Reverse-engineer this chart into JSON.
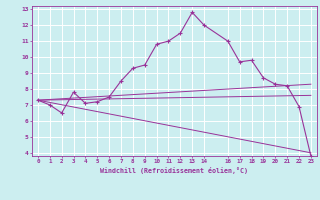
{
  "xlabel": "Windchill (Refroidissement éolien,°C)",
  "xlim": [
    -0.5,
    23.5
  ],
  "ylim": [
    3.8,
    13.2
  ],
  "xtick_positions": [
    0,
    1,
    2,
    3,
    4,
    5,
    6,
    7,
    8,
    9,
    10,
    11,
    12,
    13,
    14,
    16,
    17,
    18,
    19,
    20,
    21,
    22,
    23
  ],
  "xtick_labels": [
    "0",
    "1",
    "2",
    "3",
    "4",
    "5",
    "6",
    "7",
    "8",
    "9",
    "10",
    "11",
    "12",
    "13",
    "14",
    "16",
    "17",
    "18",
    "19",
    "20",
    "21",
    "22",
    "23"
  ],
  "ytick_values": [
    4,
    5,
    6,
    7,
    8,
    9,
    10,
    11,
    12,
    13
  ],
  "background_color": "#cceef0",
  "line_color": "#993399",
  "grid_color": "#ffffff",
  "main_series": {
    "x": [
      0,
      1,
      2,
      3,
      4,
      5,
      6,
      7,
      8,
      9,
      10,
      11,
      12,
      13,
      14,
      16,
      17,
      18,
      19,
      20,
      21,
      22,
      23
    ],
    "y": [
      7.3,
      7.0,
      6.5,
      7.8,
      7.1,
      7.2,
      7.5,
      8.5,
      9.3,
      9.5,
      10.8,
      11.0,
      11.5,
      12.8,
      12.0,
      11.0,
      9.7,
      9.8,
      8.7,
      8.3,
      8.2,
      6.9,
      3.8
    ]
  },
  "fan_lines": [
    {
      "x": [
        0,
        23
      ],
      "y": [
        7.3,
        8.3
      ]
    },
    {
      "x": [
        0,
        23
      ],
      "y": [
        7.3,
        7.6
      ]
    },
    {
      "x": [
        0,
        23
      ],
      "y": [
        7.3,
        4.0
      ]
    }
  ]
}
